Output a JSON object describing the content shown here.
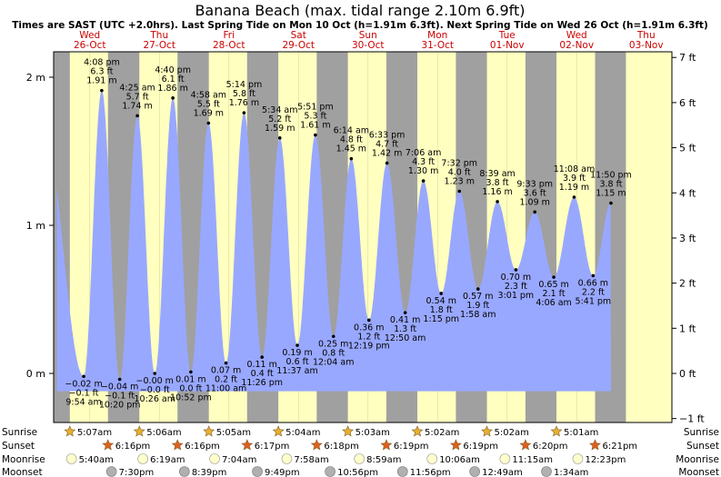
{
  "chart_data": {
    "type": "area",
    "title": "Banana Beach (max. tidal range 2.10m 6.9ft)",
    "subtitle": "Times are SAST (UTC +2.0hrs). Last Spring Tide on Mon 10 Oct (h=1.91m 6.3ft). Next Spring Tide on Wed 26 Oct (h=1.91m 6.3ft)",
    "days": [
      {
        "dow": "Wed",
        "date": "26-Oct"
      },
      {
        "dow": "Thu",
        "date": "27-Oct"
      },
      {
        "dow": "Fri",
        "date": "28-Oct"
      },
      {
        "dow": "Sat",
        "date": "29-Oct"
      },
      {
        "dow": "Sun",
        "date": "30-Oct"
      },
      {
        "dow": "Mon",
        "date": "31-Oct"
      },
      {
        "dow": "Tue",
        "date": "01-Nov"
      },
      {
        "dow": "Wed",
        "date": "02-Nov"
      },
      {
        "dow": "Thu",
        "date": "03-Nov"
      }
    ],
    "left_axis": {
      "unit": "m",
      "ylim": [
        -0.3,
        2.2
      ],
      "ticks": [
        "0 m",
        "1 m",
        "2 m"
      ]
    },
    "right_axis": {
      "unit": "ft",
      "ticks": [
        "−1 ft",
        "0 ft",
        "1 ft",
        "2 ft",
        "3 ft",
        "4 ft",
        "5 ft",
        "6 ft",
        "7 ft"
      ]
    },
    "tides": [
      {
        "type": "low",
        "day": 0,
        "hour": 9.9,
        "m": -0.02,
        "lines": [
          "−0.02 m",
          "−0.1 ft",
          "9:54 am"
        ]
      },
      {
        "type": "high",
        "day": 0,
        "hour": 16.13,
        "m": 1.91,
        "lines": [
          "4:08 pm",
          "6.3 ft",
          "1.91 m"
        ]
      },
      {
        "type": "low",
        "day": 0,
        "hour": 22.33,
        "m": -0.04,
        "lines": [
          "−0.04 m",
          "−0.1 ft",
          "10:20 pm"
        ]
      },
      {
        "type": "high",
        "day": 1,
        "hour": 4.42,
        "m": 1.74,
        "lines": [
          "4:25 am",
          "5.7 ft",
          "1.74 m"
        ]
      },
      {
        "type": "low",
        "day": 1,
        "hour": 10.43,
        "m": -0.0,
        "lines": [
          "−0.00 m",
          "−0.0 ft",
          "10:26 am"
        ]
      },
      {
        "type": "high",
        "day": 1,
        "hour": 16.67,
        "m": 1.86,
        "lines": [
          "4:40 pm",
          "6.1 ft",
          "1.86 m"
        ]
      },
      {
        "type": "low",
        "day": 1,
        "hour": 22.87,
        "m": 0.01,
        "lines": [
          "0.01 m",
          "0.0 ft",
          "10:52 pm"
        ]
      },
      {
        "type": "high",
        "day": 2,
        "hour": 4.97,
        "m": 1.69,
        "lines": [
          "4:58 am",
          "5.5 ft",
          "1.69 m"
        ]
      },
      {
        "type": "low",
        "day": 2,
        "hour": 11.0,
        "m": 0.07,
        "lines": [
          "0.07 m",
          "0.2 ft",
          "11:00 am"
        ]
      },
      {
        "type": "high",
        "day": 2,
        "hour": 17.23,
        "m": 1.76,
        "lines": [
          "5:14 pm",
          "5.8 ft",
          "1.76 m"
        ]
      },
      {
        "type": "low",
        "day": 2,
        "hour": 23.43,
        "m": 0.11,
        "lines": [
          "0.11 m",
          "0.4 ft",
          "11:26 pm"
        ]
      },
      {
        "type": "high",
        "day": 3,
        "hour": 5.57,
        "m": 1.59,
        "lines": [
          "5:34 am",
          "5.2 ft",
          "1.59 m"
        ]
      },
      {
        "type": "low",
        "day": 3,
        "hour": 11.62,
        "m": 0.19,
        "lines": [
          "0.19 m",
          "0.6 ft",
          "11:37 am"
        ]
      },
      {
        "type": "high",
        "day": 3,
        "hour": 17.85,
        "m": 1.61,
        "lines": [
          "5:51 pm",
          "5.3 ft",
          "1.61 m"
        ]
      },
      {
        "type": "low",
        "day": 4,
        "hour": 0.07,
        "m": 0.25,
        "lines": [
          "0.25 m",
          "0.8 ft",
          "12:04 am"
        ]
      },
      {
        "type": "high",
        "day": 4,
        "hour": 6.23,
        "m": 1.45,
        "lines": [
          "6:14 am",
          "4.8 ft",
          "1.45 m"
        ]
      },
      {
        "type": "low",
        "day": 4,
        "hour": 12.32,
        "m": 0.36,
        "lines": [
          "0.36 m",
          "1.2 ft",
          "12:19 pm"
        ]
      },
      {
        "type": "high",
        "day": 4,
        "hour": 18.55,
        "m": 1.42,
        "lines": [
          "6:33 pm",
          "4.7 ft",
          "1.42 m"
        ]
      },
      {
        "type": "low",
        "day": 5,
        "hour": 0.83,
        "m": 0.41,
        "lines": [
          "0.41 m",
          "1.3 ft",
          "12:50 am"
        ]
      },
      {
        "type": "high",
        "day": 5,
        "hour": 7.1,
        "m": 1.3,
        "lines": [
          "7:06 am",
          "4.3 ft",
          "1.30 m"
        ]
      },
      {
        "type": "low",
        "day": 5,
        "hour": 13.25,
        "m": 0.54,
        "lines": [
          "0.54 m",
          "1.8 ft",
          "1:15 pm"
        ]
      },
      {
        "type": "high",
        "day": 5,
        "hour": 19.53,
        "m": 1.23,
        "lines": [
          "7:32 pm",
          "4.0 ft",
          "1.23 m"
        ]
      },
      {
        "type": "low",
        "day": 6,
        "hour": 1.97,
        "m": 0.57,
        "lines": [
          "0.57 m",
          "1.9 ft",
          "1:58 am"
        ]
      },
      {
        "type": "high",
        "day": 6,
        "hour": 8.65,
        "m": 1.16,
        "lines": [
          "8:39 am",
          "3.8 ft",
          "1.16 m"
        ]
      },
      {
        "type": "low",
        "day": 6,
        "hour": 15.02,
        "m": 0.7,
        "lines": [
          "0.70 m",
          "2.3 ft",
          "3:01 pm"
        ]
      },
      {
        "type": "high",
        "day": 6,
        "hour": 21.55,
        "m": 1.09,
        "lines": [
          "9:33 pm",
          "3.6 ft",
          "1.09 m"
        ]
      },
      {
        "type": "low",
        "day": 7,
        "hour": 4.1,
        "m": 0.65,
        "lines": [
          "0.65 m",
          "2.1 ft",
          "4:06 am"
        ]
      },
      {
        "type": "high",
        "day": 7,
        "hour": 11.13,
        "m": 1.19,
        "lines": [
          "11:08 am",
          "3.9 ft",
          "1.19 m"
        ]
      },
      {
        "type": "low",
        "day": 7,
        "hour": 17.68,
        "m": 0.66,
        "lines": [
          "0.66 m",
          "2.2 ft",
          "5:41 pm"
        ]
      },
      {
        "type": "high",
        "day": 7,
        "hour": 23.83,
        "m": 1.15,
        "lines": [
          "11:50 pm",
          "3.8 ft",
          "1.15 m"
        ]
      }
    ],
    "sun": [
      {
        "day": 0,
        "rise_hour": 5.12,
        "set_hour": 18.27,
        "rise": "5:07am",
        "set": "6:16pm"
      },
      {
        "day": 1,
        "rise_hour": 5.1,
        "set_hour": 18.27,
        "rise": "5:06am",
        "set": "6:16pm"
      },
      {
        "day": 2,
        "rise_hour": 5.08,
        "set_hour": 18.28,
        "rise": "5:05am",
        "set": "6:17pm"
      },
      {
        "day": 3,
        "rise_hour": 5.07,
        "set_hour": 18.3,
        "rise": "5:04am",
        "set": "6:18pm"
      },
      {
        "day": 4,
        "rise_hour": 5.05,
        "set_hour": 18.32,
        "rise": "5:03am",
        "set": "6:19pm"
      },
      {
        "day": 5,
        "rise_hour": 5.03,
        "set_hour": 18.32,
        "rise": "5:02am",
        "set": "6:19pm"
      },
      {
        "day": 6,
        "rise_hour": 5.03,
        "set_hour": 18.33,
        "rise": "5:02am",
        "set": "6:20pm"
      },
      {
        "day": 7,
        "rise_hour": 5.02,
        "set_hour": 18.35,
        "rise": "5:01am",
        "set": "6:21pm"
      }
    ],
    "moon": [
      {
        "day": 0,
        "rise_hour": 5.67,
        "set_hour": 19.5,
        "rise": "5:40am",
        "set": "7:30pm"
      },
      {
        "day": 1,
        "rise_hour": 6.32,
        "set_hour": 20.65,
        "rise": "6:19am",
        "set": "8:39pm"
      },
      {
        "day": 2,
        "rise_hour": 7.07,
        "set_hour": 21.82,
        "rise": "7:04am",
        "set": "9:49pm"
      },
      {
        "day": 3,
        "rise_hour": 7.97,
        "set_hour": 22.93,
        "rise": "7:58am",
        "set": "10:56pm"
      },
      {
        "day": 4,
        "rise_hour": 8.98,
        "set_hour": 23.93,
        "rise": "8:59am",
        "set": "11:56pm"
      },
      {
        "day": 5,
        "rise_hour": 10.1,
        "set_hour": null,
        "rise": "10:06am",
        "set": null
      },
      {
        "day": 6,
        "rise_hour": 11.25,
        "set_hour": 0.82,
        "rise": "11:15am",
        "set": "12:49am"
      },
      {
        "day": 7,
        "rise_hour": 12.38,
        "set_hour": 1.57,
        "rise": "12:23pm",
        "set": "1:34am"
      }
    ],
    "row_labels": [
      "Sunrise",
      "Sunset",
      "Moonrise",
      "Moonset"
    ],
    "colors": {
      "water": "#99a8ff",
      "day": "#ffffc0",
      "night": "#a0a0a0",
      "day_header": "#cc0000",
      "sun_marker": "#e8b030",
      "sunset_marker": "#e06020",
      "moonrise_marker": "#ffffcc",
      "moonset_marker": "#b0b0b0"
    }
  }
}
